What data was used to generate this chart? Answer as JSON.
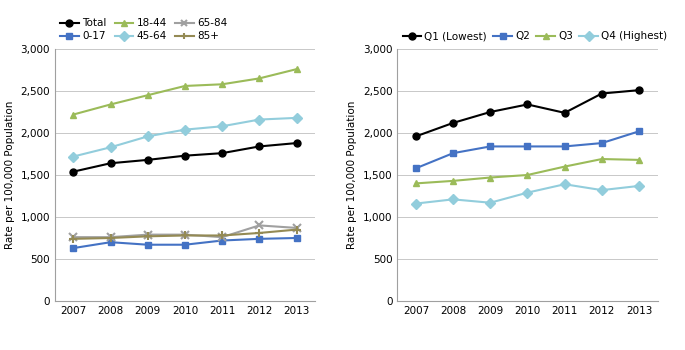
{
  "years": [
    2007,
    2008,
    2009,
    2010,
    2011,
    2012,
    2013
  ],
  "left_chart": {
    "ylabel": "Rate per 100,000 Population",
    "ylim": [
      0,
      3000
    ],
    "yticks": [
      0,
      500,
      1000,
      1500,
      2000,
      2500,
      3000
    ],
    "series": [
      {
        "label": "Total",
        "values": [
          1540,
          1640,
          1680,
          1730,
          1760,
          1840,
          1880
        ],
        "color": "#000000",
        "marker": "o"
      },
      {
        "label": "0-17",
        "values": [
          630,
          700,
          670,
          670,
          720,
          740,
          750
        ],
        "color": "#4472C4",
        "marker": "s"
      },
      {
        "label": "18-44",
        "values": [
          2220,
          2340,
          2450,
          2560,
          2580,
          2650,
          2760
        ],
        "color": "#9BBB59",
        "marker": "^"
      },
      {
        "label": "45-64",
        "values": [
          1720,
          1830,
          1960,
          2040,
          2080,
          2160,
          2180
        ],
        "color": "#92CDDC",
        "marker": "D"
      },
      {
        "label": "65-84",
        "values": [
          760,
          760,
          790,
          790,
          760,
          900,
          870
        ],
        "color": "#A0A0A0",
        "marker": "x"
      },
      {
        "label": "85+",
        "values": [
          740,
          750,
          770,
          780,
          780,
          810,
          850
        ],
        "color": "#948A54",
        "marker": "+"
      }
    ]
  },
  "right_chart": {
    "ylabel": "Rate per 100,000 Population",
    "ylim": [
      0,
      3000
    ],
    "yticks": [
      0,
      500,
      1000,
      1500,
      2000,
      2500,
      3000
    ],
    "series": [
      {
        "label": "Q1 (Lowest)",
        "values": [
          1960,
          2120,
          2250,
          2340,
          2240,
          2470,
          2510
        ],
        "color": "#000000",
        "marker": "o"
      },
      {
        "label": "Q2",
        "values": [
          1580,
          1760,
          1840,
          1840,
          1840,
          1880,
          2020
        ],
        "color": "#4472C4",
        "marker": "s"
      },
      {
        "label": "Q3",
        "values": [
          1400,
          1430,
          1470,
          1500,
          1600,
          1690,
          1680
        ],
        "color": "#9BBB59",
        "marker": "^"
      },
      {
        "label": "Q4 (Highest)",
        "values": [
          1160,
          1210,
          1170,
          1290,
          1390,
          1320,
          1370
        ],
        "color": "#92CDDC",
        "marker": "D"
      }
    ]
  },
  "background_color": "#FFFFFF",
  "grid_color": "#C8C8C8"
}
